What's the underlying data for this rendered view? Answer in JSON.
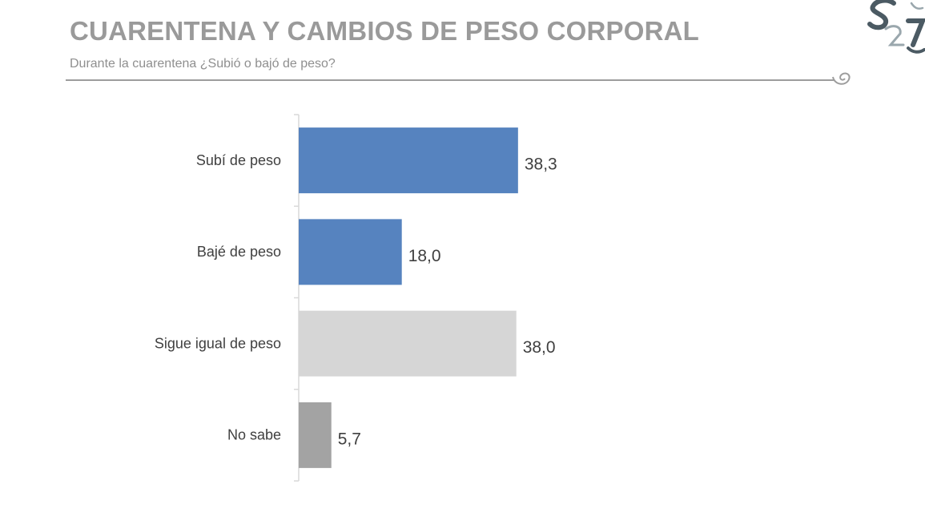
{
  "header": {
    "title": "CUARENTENA Y CAMBIOS DE PESO CORPORAL",
    "subtitle": "Durante la cuarentena ¿Subió o bajó de peso?"
  },
  "chart_data": {
    "type": "bar",
    "orientation": "horizontal",
    "title": "CUARENTENA Y CAMBIOS DE PESO CORPORAL",
    "subtitle": "Durante la cuarentena ¿Subió o bajó de peso?",
    "categories": [
      "Subí de peso",
      "Bajé de peso",
      "Sigue igual de peso",
      "No sabe"
    ],
    "values": [
      38.3,
      18.0,
      38.0,
      5.7
    ],
    "value_labels": [
      "38,3",
      "18,0",
      "38,0",
      "5,7"
    ],
    "colors": [
      "#5683bf",
      "#5683bf",
      "#d6d6d6",
      "#a3a3a3"
    ],
    "xlim": [
      0,
      100
    ],
    "grid": false,
    "legend": "none"
  },
  "colors": {
    "title": "#9a9a9a",
    "subtitle": "#8f8f8f",
    "axis": "#d9d9d9",
    "label": "#404040",
    "logo": "#4b5a63"
  }
}
